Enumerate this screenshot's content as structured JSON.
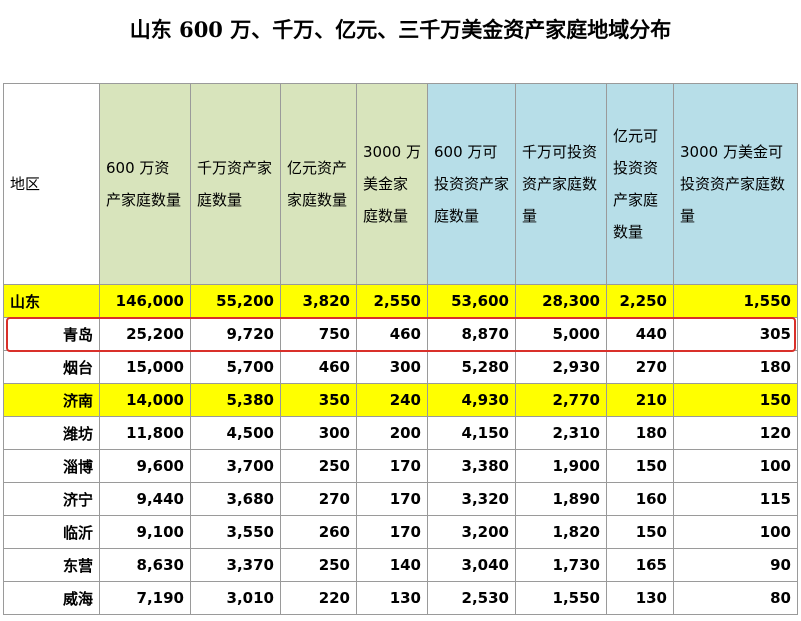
{
  "header": {
    "title": "山东 600 万、千万、亿元、三千万美金资产家庭地域分布"
  },
  "table": {
    "columns": [
      "地区",
      "600 万资产家庭数量",
      "千万资产家庭数量",
      "亿元资产家庭数量",
      "3000 万美金家庭数量",
      "600 万可投资资产家庭数量",
      "千万可投资资产家庭数量",
      "亿元可投资资产家庭数量",
      "3000 万美金可投资资产家庭数量"
    ],
    "rows": [
      [
        "山东",
        "146,000",
        "55,200",
        "3,820",
        "2,550",
        "53,600",
        "28,300",
        "2,250",
        "1,550"
      ],
      [
        "青岛",
        "25,200",
        "9,720",
        "750",
        "460",
        "8,870",
        "5,000",
        "440",
        "305"
      ],
      [
        "烟台",
        "15,000",
        "5,700",
        "460",
        "300",
        "5,280",
        "2,930",
        "270",
        "180"
      ],
      [
        "济南",
        "14,000",
        "5,380",
        "350",
        "240",
        "4,930",
        "2,770",
        "210",
        "150"
      ],
      [
        "潍坊",
        "11,800",
        "4,500",
        "300",
        "200",
        "4,150",
        "2,310",
        "180",
        "120"
      ],
      [
        "淄博",
        "9,600",
        "3,700",
        "250",
        "170",
        "3,380",
        "1,900",
        "150",
        "100"
      ],
      [
        "济宁",
        "9,440",
        "3,680",
        "270",
        "170",
        "3,320",
        "1,890",
        "160",
        "115"
      ],
      [
        "临沂",
        "9,100",
        "3,550",
        "260",
        "170",
        "3,200",
        "1,820",
        "150",
        "100"
      ],
      [
        "东营",
        "8,630",
        "3,370",
        "250",
        "140",
        "3,040",
        "1,730",
        "165",
        "90"
      ],
      [
        "威海",
        "7,190",
        "3,010",
        "220",
        "130",
        "2,530",
        "1,550",
        "130",
        "80"
      ]
    ],
    "highlighted_rows": [
      0,
      3
    ],
    "boxed_row": 1
  }
}
